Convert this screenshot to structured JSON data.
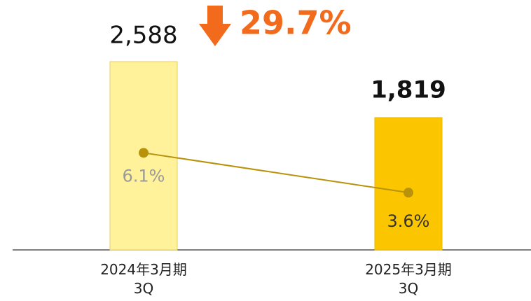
{
  "chart_data": {
    "type": "bar",
    "categories": [
      "2024年3月期\n3Q",
      "2025年3月期\n3Q"
    ],
    "ylim": [
      0,
      2800
    ],
    "y2lim": [
      0,
      12.8
    ],
    "annotation": "29.7%",
    "series": [
      {
        "type": "bar",
        "color": "#fff29a",
        "values": [
          2588,
          1819
        ],
        "value_labels": [
          "2,588",
          "1,819"
        ]
      },
      {
        "type": "line",
        "axis": "y2",
        "color": "#b8920a",
        "values": [
          6.1,
          3.6
        ],
        "value_labels": [
          "6.1%",
          "3.6%"
        ]
      }
    ]
  }
}
